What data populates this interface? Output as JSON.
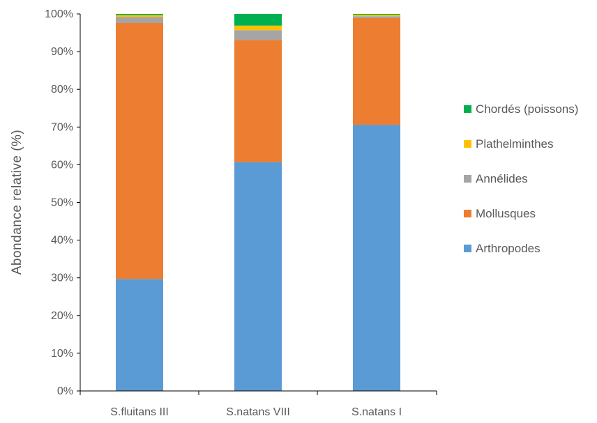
{
  "chart_data": {
    "type": "bar",
    "stacked": true,
    "percent": true,
    "categories": [
      "S.fluitans III",
      "S.natans VIII",
      "S.natans I"
    ],
    "series": [
      {
        "name": "Arthropodes",
        "color": "#5B9BD5",
        "values": [
          29.7,
          60.7,
          70.6
        ]
      },
      {
        "name": "Mollusques",
        "color": "#ED7D31",
        "values": [
          67.9,
          32.4,
          28.3
        ]
      },
      {
        "name": "Annélides",
        "color": "#A5A5A5",
        "values": [
          1.6,
          2.6,
          0.5
        ]
      },
      {
        "name": "Plathelminthes",
        "color": "#FFC000",
        "values": [
          0.5,
          1.2,
          0.4
        ]
      },
      {
        "name": "Chordés (poissons)",
        "color": "#00B050",
        "values": [
          0.3,
          3.1,
          0.2
        ]
      }
    ],
    "ylabel": "Abondance relative (%)",
    "xlabel": "",
    "ylim": [
      0,
      100
    ],
    "yticks": [
      "0%",
      "10%",
      "20%",
      "30%",
      "40%",
      "50%",
      "60%",
      "70%",
      "80%",
      "90%",
      "100%"
    ],
    "legend_position": "right",
    "grid": false
  }
}
